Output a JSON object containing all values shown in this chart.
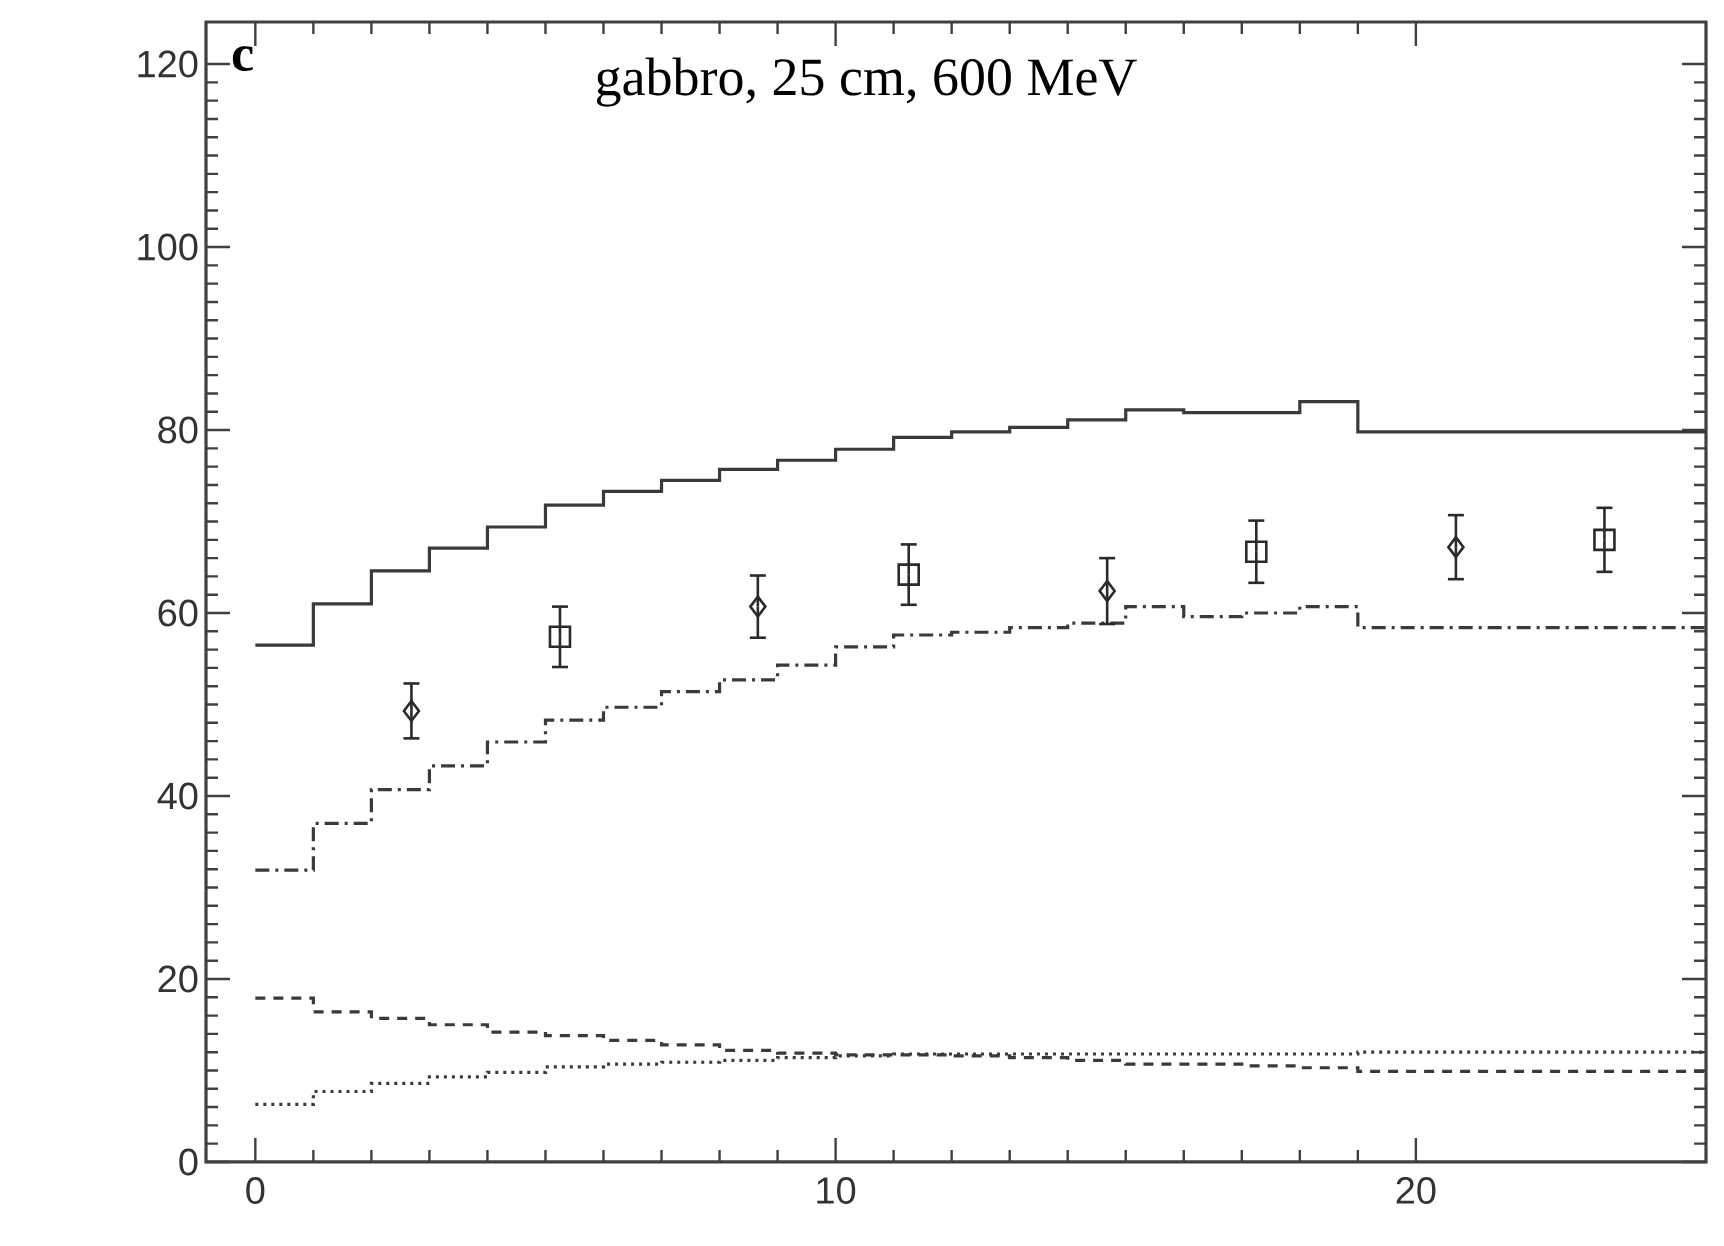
{
  "chart_data": {
    "type": "step",
    "title": "gabbro, 25 cm, 600 MeV",
    "annotations": [
      "c"
    ],
    "xlim": [
      -0.85,
      25
    ],
    "ylim": [
      0,
      124.6
    ],
    "xticks": [
      0,
      10,
      20
    ],
    "yticks": [
      0,
      20,
      40,
      60,
      80,
      100,
      120
    ],
    "series": [
      {
        "type": "step",
        "line_style": "solid",
        "marker": "none",
        "color": "#3a3a3a",
        "x": [
          0,
          1,
          2,
          3,
          4,
          5,
          6,
          7,
          8,
          9,
          10,
          11,
          12,
          13,
          14,
          15,
          16,
          17,
          18,
          19,
          25
        ],
        "values": [
          56.5,
          61.0,
          64.6,
          67.1,
          69.4,
          71.8,
          73.3,
          74.5,
          75.7,
          76.7,
          77.9,
          79.2,
          79.8,
          80.3,
          81.1,
          82.2,
          81.9,
          81.9,
          83.1,
          79.8,
          79.8
        ]
      },
      {
        "type": "step",
        "line_style": "dashdot",
        "marker": "none",
        "color": "#3a3a3a",
        "x": [
          0,
          1,
          2,
          3,
          4,
          5,
          6,
          7,
          8,
          9,
          10,
          11,
          12,
          13,
          14,
          15,
          16,
          17,
          18,
          19,
          25
        ],
        "values": [
          31.9,
          37.0,
          40.7,
          43.3,
          45.9,
          48.3,
          49.7,
          51.4,
          52.7,
          54.3,
          56.3,
          57.6,
          57.9,
          58.4,
          58.9,
          60.7,
          59.6,
          60.0,
          60.7,
          58.4,
          58.4
        ]
      },
      {
        "type": "step",
        "line_style": "dashed",
        "marker": "none",
        "color": "#3a3a3a",
        "x": [
          0,
          1,
          2,
          3,
          4,
          5,
          6,
          7,
          8,
          9,
          10,
          11,
          12,
          13,
          14,
          15,
          16,
          17,
          18,
          19,
          25
        ],
        "values": [
          17.9,
          16.4,
          15.7,
          15.0,
          14.2,
          13.8,
          13.3,
          12.8,
          12.2,
          11.9,
          11.7,
          11.7,
          11.6,
          11.4,
          11.1,
          10.7,
          10.7,
          10.5,
          10.3,
          9.9,
          9.9
        ]
      },
      {
        "type": "step",
        "line_style": "dotted",
        "marker": "none",
        "color": "#3a3a3a",
        "x": [
          0,
          1,
          2,
          3,
          4,
          5,
          6,
          7,
          8,
          9,
          10,
          11,
          12,
          13,
          14,
          15,
          16,
          17,
          18,
          19,
          25
        ],
        "values": [
          6.3,
          7.7,
          8.6,
          9.3,
          9.8,
          10.4,
          10.7,
          10.9,
          11.1,
          11.4,
          11.6,
          11.8,
          11.8,
          11.8,
          11.8,
          11.8,
          11.8,
          11.8,
          11.8,
          12.0,
          12.0
        ]
      },
      {
        "type": "scatter",
        "marker": "diamond",
        "color": "#2a2a2a",
        "x": [
          2.69,
          8.66,
          14.68,
          20.69
        ],
        "values": [
          49.3,
          60.7,
          62.4,
          67.2
        ],
        "errors": [
          3.0,
          3.4,
          3.6,
          3.5
        ]
      },
      {
        "type": "scatter",
        "marker": "square",
        "color": "#2a2a2a",
        "x": [
          5.25,
          11.26,
          17.25,
          23.25
        ],
        "values": [
          57.4,
          64.2,
          66.7,
          68.0
        ],
        "errors": [
          3.3,
          3.3,
          3.4,
          3.5
        ]
      }
    ]
  }
}
